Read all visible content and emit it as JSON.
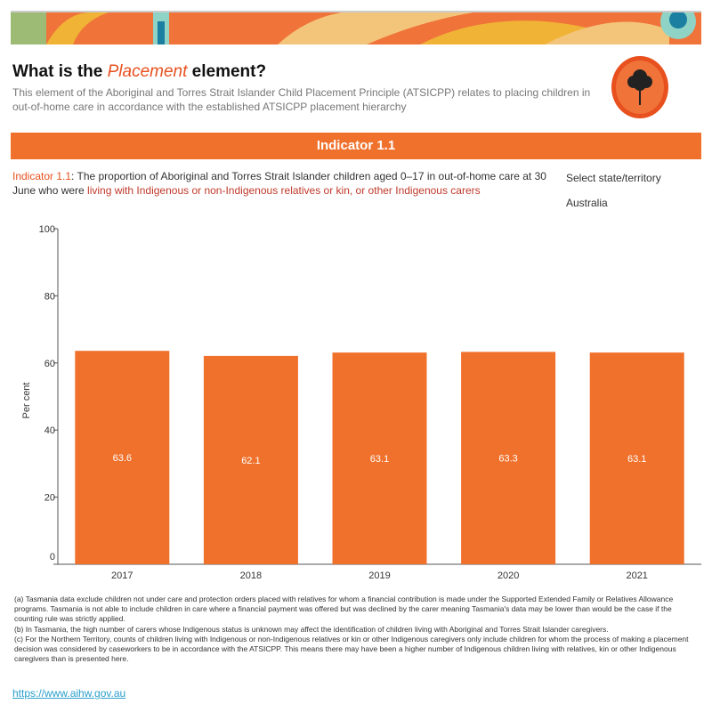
{
  "header": {
    "title_pre": "What is the ",
    "title_em": "Placement",
    "title_post": " element?",
    "description": "This element of the Aboriginal and Torres Strait Islander Child Placement Principle (ATSICPP) relates to placing children in out-of-home care in accordance with the established ATSICPP placement hierarchy"
  },
  "band": {
    "label": "Indicator 1.1"
  },
  "indicator": {
    "label": "Indicator 1.1",
    "text": ": The proportion of Aboriginal and Torres Strait Islander children aged 0–17 in out-of-home care at 30 June who were ",
    "highlight": "living with Indigenous or non-Indigenous relatives or kin, or other Indigenous carers"
  },
  "filter": {
    "label": "Select state/territory",
    "value": "Australia"
  },
  "colors": {
    "accent": "#f0712c",
    "bar": "#f0712c"
  },
  "chart_data": {
    "type": "bar",
    "categories": [
      "2017",
      "2018",
      "2019",
      "2020",
      "2021"
    ],
    "values": [
      63.6,
      62.1,
      63.1,
      63.3,
      63.1
    ],
    "ylabel": "Per cent",
    "ylim": [
      0,
      100
    ],
    "yticks": [
      0,
      20,
      40,
      60,
      80,
      100
    ],
    "grid": false
  },
  "notes": [
    "(a) Tasmania data exclude children not under care and protection orders placed with relatives for whom a financial contribution is made under the Supported Extended Family or Relatives Allowance programs. Tasmania is not able to include children in care where a financial payment was offered but was declined by the carer meaning Tasmania's data may be lower than would be the case if the counting rule was strictly applied.",
    "(b) In Tasmania, the high number of carers whose Indigenous status is unknown may affect the identification of children living with Aboriginal and Torres Strait Islander caregivers.",
    "(c) For the Northern Territory, counts of children living with Indigenous or non-Indigenous relatives or kin or other Indigenous caregivers only include children for whom the process of making a placement decision was considered by caseworkers to be in accordance with the ATSICPP. This means there may have been a higher number of Indigenous children living with relatives, kin or other Indigenous caregivers than is presented here."
  ],
  "link": "https://www.aihw.gov.au"
}
